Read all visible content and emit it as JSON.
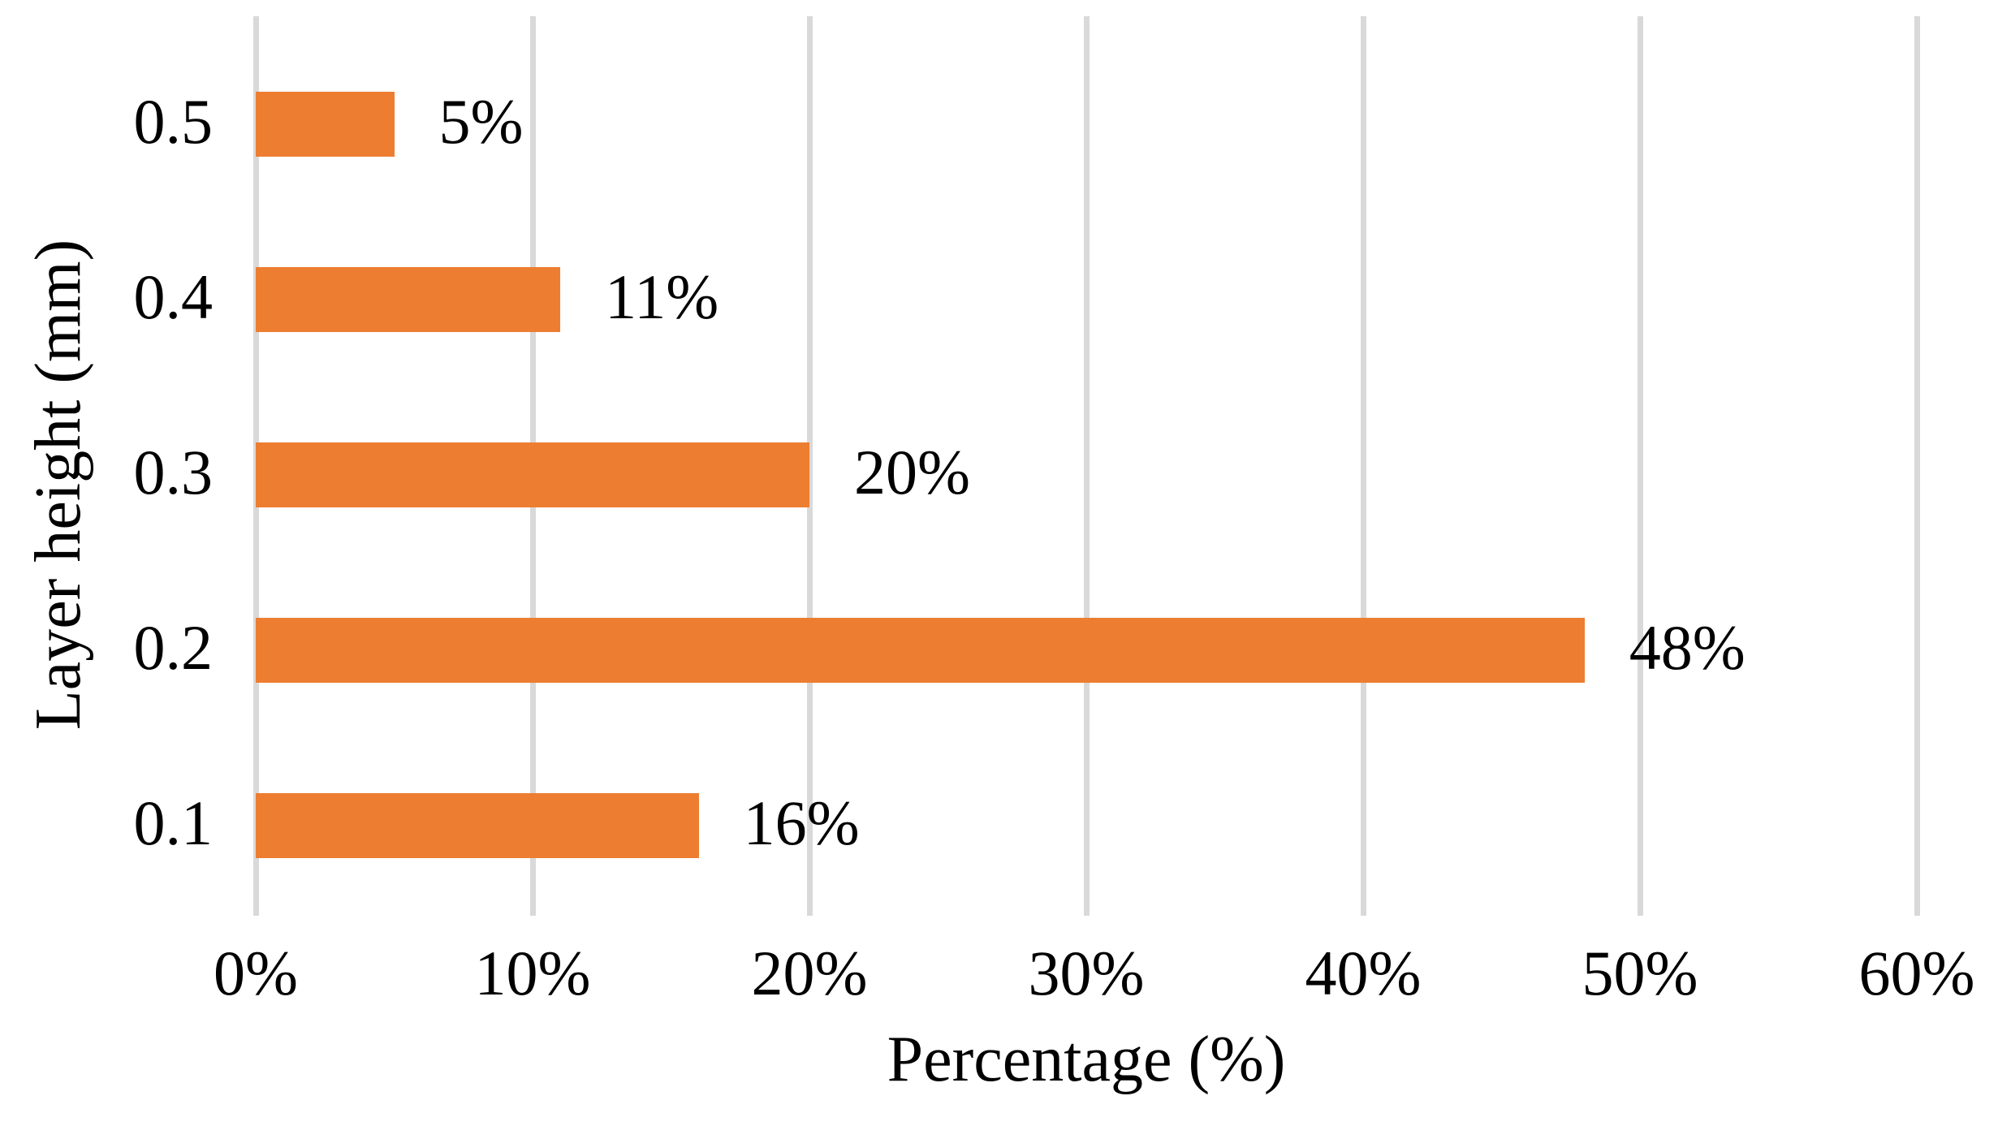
{
  "chart_data": {
    "type": "bar",
    "orientation": "horizontal",
    "title": "",
    "categories": [
      "0.5",
      "0.4",
      "0.3",
      "0.2",
      "0.1"
    ],
    "values": [
      5,
      11,
      20,
      48,
      16
    ],
    "data_labels": [
      "5%",
      "11%",
      "20%",
      "48%",
      "16%"
    ],
    "xlabel": "Percentage (%)",
    "ylabel": "Layer height (mm)",
    "xlim": [
      0,
      60
    ],
    "xtick_interval": 10,
    "xtick_labels": [
      "0%",
      "10%",
      "20%",
      "30%",
      "40%",
      "50%",
      "60%"
    ],
    "grid": "vertical-only",
    "legend": "none",
    "bar_color": "#ED7D31",
    "gridline_color": "#D9D9D9",
    "text_color": "#000000",
    "background_color": "#FFFFFF"
  }
}
